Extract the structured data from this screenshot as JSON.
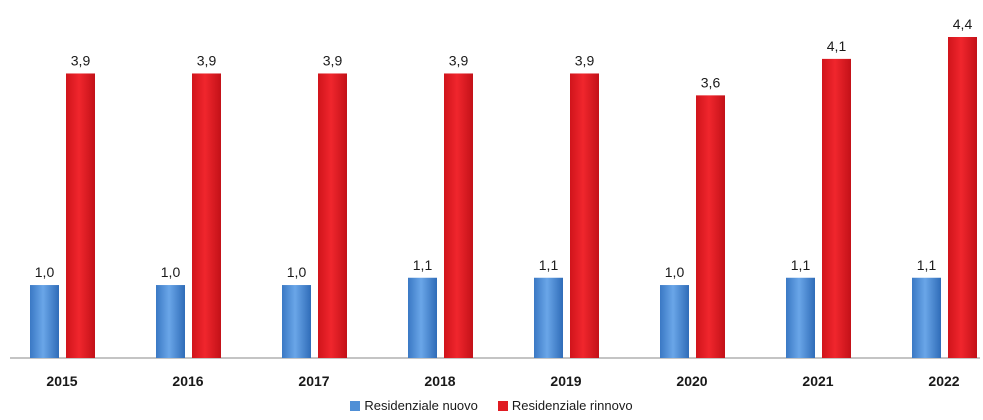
{
  "chart_data": {
    "type": "bar",
    "title": "",
    "xlabel": "",
    "ylabel": "",
    "categories": [
      "2015",
      "2016",
      "2017",
      "2018",
      "2019",
      "2020",
      "2021",
      "2022"
    ],
    "series": [
      {
        "name": "Residenziale nuovo",
        "values": [
          1.0,
          1.0,
          1.0,
          1.1,
          1.1,
          1.0,
          1.1,
          1.1
        ],
        "labels": [
          "1,0",
          "1,0",
          "1,0",
          "1,1",
          "1,1",
          "1,0",
          "1,1",
          "1,1"
        ],
        "color": "#4f8fd6"
      },
      {
        "name": "Residenziale rinnovo",
        "values": [
          3.9,
          3.9,
          3.9,
          3.9,
          3.9,
          3.6,
          4.1,
          4.4
        ],
        "labels": [
          "3,9",
          "3,9",
          "3,9",
          "3,9",
          "3,9",
          "3,6",
          "4,1",
          "4,4"
        ],
        "color": "#e01b22"
      }
    ],
    "ylim": [
      0,
      4.4
    ],
    "grid": false,
    "legend": "bottom"
  }
}
